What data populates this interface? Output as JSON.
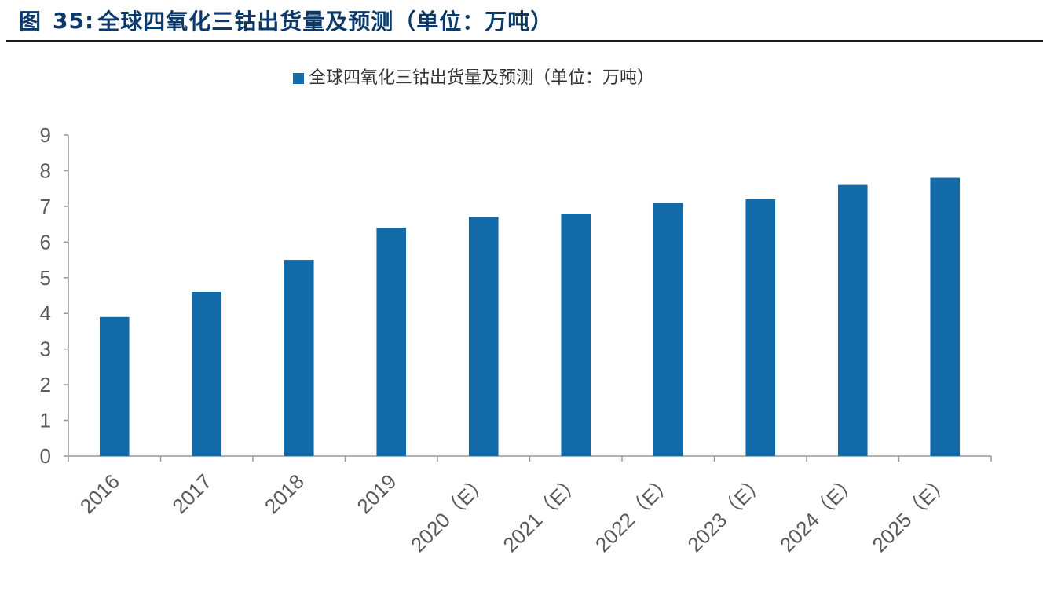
{
  "header": {
    "figure_prefix": "图",
    "figure_number": "35:",
    "figure_title": "全球四氧化三钴出货量及预测（单位：万吨）"
  },
  "colors": {
    "bar": "#126AA8",
    "header_text": "#0B3A6A",
    "axis": "#999999",
    "tick_text": "#595959"
  },
  "chart_data": {
    "type": "bar",
    "title": "",
    "xlabel": "",
    "ylabel": "",
    "categories": [
      "2016",
      "2017",
      "2018",
      "2019",
      "2020（E）",
      "2021（E）",
      "2022（E）",
      "2023（E）",
      "2024（E）",
      "2025（E）"
    ],
    "series": [
      {
        "name": "全球四氧化三钴出货量及预测（单位：万吨）",
        "values": [
          3.9,
          4.6,
          5.5,
          6.4,
          6.7,
          6.8,
          7.1,
          7.2,
          7.6,
          7.8
        ]
      }
    ],
    "ylim": [
      0,
      9
    ],
    "yticks": [
      0,
      1,
      2,
      3,
      4,
      5,
      6,
      7,
      8,
      9
    ],
    "grid": false,
    "legend_position": "top-center"
  }
}
